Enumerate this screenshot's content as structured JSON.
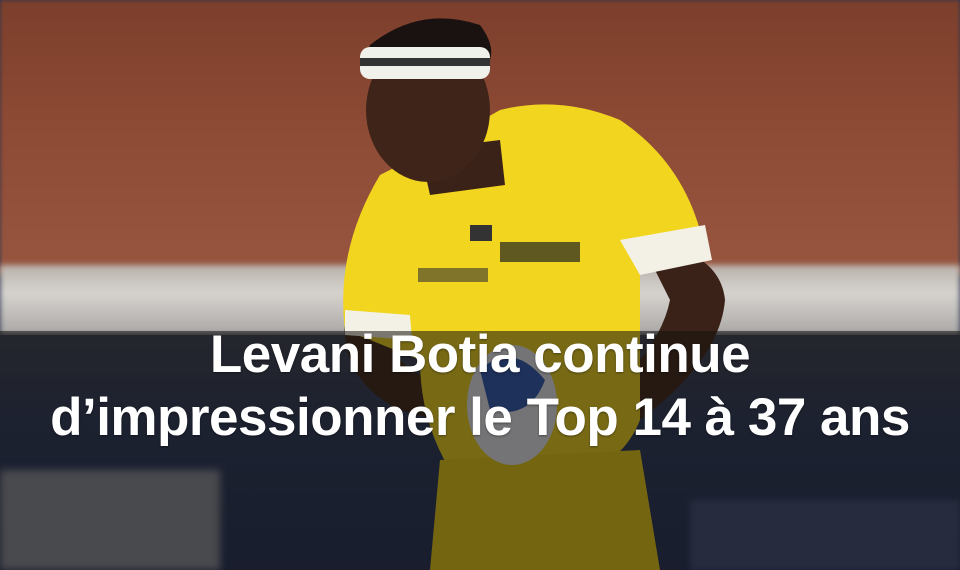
{
  "article": {
    "headline": "Levani Botia continue d’impressionner le Top 14 à 37 ans"
  },
  "photo": {
    "subject": "rugby player in yellow jersey carrying ball",
    "colors": {
      "jersey": "#f2d51e",
      "wall": "#8d4a34",
      "overlay": "#14120e"
    }
  }
}
